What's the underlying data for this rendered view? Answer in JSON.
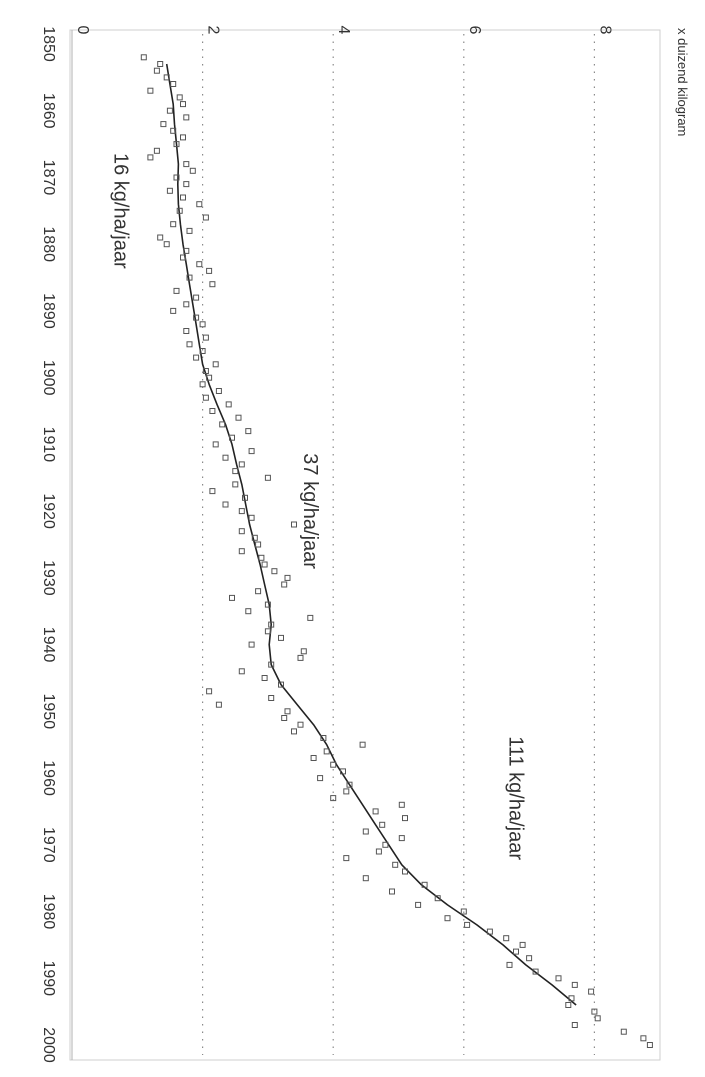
{
  "chart_data": {
    "type": "scatter",
    "orientation": "rotated 90 degrees clockwise",
    "ylabel": "x duizend kilogram",
    "xlabel": "",
    "xlim": [
      1850,
      2000
    ],
    "ylim": [
      0,
      9
    ],
    "grid": "dotted horizontal lines at y = 2, 4, 6, 8",
    "x_ticks": [
      "1850",
      "1860",
      "1870",
      "1880",
      "1890",
      "1900",
      "1910",
      "1920",
      "1930",
      "1940",
      "1950",
      "1960",
      "1970",
      "1980",
      "1990",
      "2000"
    ],
    "y_ticks": [
      "0",
      "2",
      "4",
      "6",
      "8"
    ],
    "annotations": [
      {
        "text": "16 kg/ha/jaar",
        "x": 1875,
        "y": 0.65
      },
      {
        "text": "37 kg/ha/jaar",
        "x": 1920,
        "y": 3.55
      },
      {
        "text": "111 kg/ha/jaar",
        "x": 1963,
        "y": 6.7
      }
    ],
    "series": [
      {
        "type": "scatter",
        "marker": "square",
        "points": [
          [
            1852,
            1.1
          ],
          [
            1853,
            1.35
          ],
          [
            1854,
            1.3
          ],
          [
            1855,
            1.45
          ],
          [
            1856,
            1.55
          ],
          [
            1857,
            1.2
          ],
          [
            1858,
            1.65
          ],
          [
            1859,
            1.7
          ],
          [
            1860,
            1.5
          ],
          [
            1861,
            1.75
          ],
          [
            1862,
            1.4
          ],
          [
            1863,
            1.55
          ],
          [
            1864,
            1.7
          ],
          [
            1865,
            1.6
          ],
          [
            1866,
            1.3
          ],
          [
            1867,
            1.2
          ],
          [
            1868,
            1.75
          ],
          [
            1869,
            1.85
          ],
          [
            1870,
            1.6
          ],
          [
            1871,
            1.75
          ],
          [
            1872,
            1.5
          ],
          [
            1873,
            1.7
          ],
          [
            1874,
            1.95
          ],
          [
            1875,
            1.65
          ],
          [
            1876,
            2.05
          ],
          [
            1877,
            1.55
          ],
          [
            1878,
            1.8
          ],
          [
            1879,
            1.35
          ],
          [
            1880,
            1.45
          ],
          [
            1881,
            1.75
          ],
          [
            1882,
            1.7
          ],
          [
            1883,
            1.95
          ],
          [
            1884,
            2.1
          ],
          [
            1885,
            1.8
          ],
          [
            1886,
            2.15
          ],
          [
            1887,
            1.6
          ],
          [
            1888,
            1.9
          ],
          [
            1889,
            1.75
          ],
          [
            1890,
            1.55
          ],
          [
            1891,
            1.9
          ],
          [
            1892,
            2.0
          ],
          [
            1893,
            1.75
          ],
          [
            1894,
            2.05
          ],
          [
            1895,
            1.8
          ],
          [
            1896,
            2.0
          ],
          [
            1897,
            1.9
          ],
          [
            1898,
            2.2
          ],
          [
            1899,
            2.05
          ],
          [
            1900,
            2.1
          ],
          [
            1901,
            2.0
          ],
          [
            1902,
            2.25
          ],
          [
            1903,
            2.05
          ],
          [
            1904,
            2.4
          ],
          [
            1905,
            2.15
          ],
          [
            1906,
            2.55
          ],
          [
            1907,
            2.3
          ],
          [
            1908,
            2.7
          ],
          [
            1909,
            2.45
          ],
          [
            1910,
            2.2
          ],
          [
            1911,
            2.75
          ],
          [
            1912,
            2.35
          ],
          [
            1913,
            2.6
          ],
          [
            1914,
            2.5
          ],
          [
            1915,
            3.0
          ],
          [
            1916,
            2.5
          ],
          [
            1917,
            2.15
          ],
          [
            1918,
            2.65
          ],
          [
            1919,
            2.35
          ],
          [
            1920,
            2.6
          ],
          [
            1921,
            2.75
          ],
          [
            1922,
            3.4
          ],
          [
            1923,
            2.6
          ],
          [
            1924,
            2.8
          ],
          [
            1925,
            2.85
          ],
          [
            1926,
            2.6
          ],
          [
            1927,
            2.9
          ],
          [
            1928,
            2.95
          ],
          [
            1929,
            3.1
          ],
          [
            1930,
            3.3
          ],
          [
            1931,
            3.25
          ],
          [
            1932,
            2.85
          ],
          [
            1933,
            2.45
          ],
          [
            1934,
            3.0
          ],
          [
            1935,
            2.7
          ],
          [
            1936,
            3.65
          ],
          [
            1937,
            3.05
          ],
          [
            1938,
            3.0
          ],
          [
            1939,
            3.2
          ],
          [
            1940,
            2.75
          ],
          [
            1941,
            3.55
          ],
          [
            1942,
            3.5
          ],
          [
            1943,
            3.05
          ],
          [
            1944,
            2.6
          ],
          [
            1945,
            2.95
          ],
          [
            1946,
            3.2
          ],
          [
            1947,
            2.1
          ],
          [
            1948,
            3.05
          ],
          [
            1949,
            2.25
          ],
          [
            1950,
            3.3
          ],
          [
            1951,
            3.25
          ],
          [
            1952,
            3.5
          ],
          [
            1953,
            3.4
          ],
          [
            1954,
            3.85
          ],
          [
            1955,
            4.45
          ],
          [
            1956,
            3.9
          ],
          [
            1957,
            3.7
          ],
          [
            1958,
            4.0
          ],
          [
            1959,
            4.15
          ],
          [
            1960,
            3.8
          ],
          [
            1961,
            4.25
          ],
          [
            1962,
            4.2
          ],
          [
            1963,
            4.0
          ],
          [
            1964,
            5.05
          ],
          [
            1965,
            4.65
          ],
          [
            1966,
            5.1
          ],
          [
            1967,
            4.75
          ],
          [
            1968,
            4.5
          ],
          [
            1969,
            5.05
          ],
          [
            1970,
            4.8
          ],
          [
            1971,
            4.7
          ],
          [
            1972,
            4.2
          ],
          [
            1973,
            4.95
          ],
          [
            1974,
            5.1
          ],
          [
            1975,
            4.5
          ],
          [
            1976,
            5.4
          ],
          [
            1977,
            4.9
          ],
          [
            1978,
            5.6
          ],
          [
            1979,
            5.3
          ],
          [
            1980,
            6.0
          ],
          [
            1981,
            5.75
          ],
          [
            1982,
            6.05
          ],
          [
            1983,
            6.4
          ],
          [
            1984,
            6.65
          ],
          [
            1985,
            6.9
          ],
          [
            1986,
            6.8
          ],
          [
            1987,
            7.0
          ],
          [
            1988,
            6.7
          ],
          [
            1989,
            7.1
          ],
          [
            1990,
            7.45
          ],
          [
            1991,
            7.7
          ],
          [
            1992,
            7.95
          ],
          [
            1993,
            7.65
          ],
          [
            1994,
            7.6
          ],
          [
            1995,
            8.0
          ],
          [
            1996,
            8.05
          ],
          [
            1997,
            7.7
          ],
          [
            1998,
            8.45
          ],
          [
            1999,
            8.75
          ],
          [
            2000,
            8.85
          ]
        ]
      },
      {
        "type": "line",
        "points": [
          [
            1853,
            1.45
          ],
          [
            1856,
            1.5
          ],
          [
            1859,
            1.55
          ],
          [
            1862,
            1.57
          ],
          [
            1865,
            1.6
          ],
          [
            1868,
            1.63
          ],
          [
            1871,
            1.62
          ],
          [
            1874,
            1.63
          ],
          [
            1877,
            1.66
          ],
          [
            1880,
            1.7
          ],
          [
            1883,
            1.75
          ],
          [
            1886,
            1.8
          ],
          [
            1889,
            1.85
          ],
          [
            1892,
            1.9
          ],
          [
            1895,
            1.95
          ],
          [
            1898,
            2.0
          ],
          [
            1901,
            2.1
          ],
          [
            1904,
            2.22
          ],
          [
            1907,
            2.35
          ],
          [
            1910,
            2.45
          ],
          [
            1913,
            2.52
          ],
          [
            1916,
            2.6
          ],
          [
            1919,
            2.66
          ],
          [
            1922,
            2.72
          ],
          [
            1925,
            2.8
          ],
          [
            1928,
            2.88
          ],
          [
            1931,
            2.95
          ],
          [
            1934,
            3.02
          ],
          [
            1937,
            3.05
          ],
          [
            1940,
            3.02
          ],
          [
            1943,
            3.05
          ],
          [
            1946,
            3.2
          ],
          [
            1949,
            3.45
          ],
          [
            1952,
            3.7
          ],
          [
            1955,
            3.9
          ],
          [
            1958,
            4.05
          ],
          [
            1961,
            4.25
          ],
          [
            1964,
            4.45
          ],
          [
            1967,
            4.65
          ],
          [
            1970,
            4.85
          ],
          [
            1973,
            5.05
          ],
          [
            1976,
            5.35
          ],
          [
            1979,
            5.75
          ],
          [
            1982,
            6.2
          ],
          [
            1985,
            6.6
          ],
          [
            1988,
            6.95
          ],
          [
            1991,
            7.35
          ],
          [
            1994,
            7.72
          ]
        ]
      }
    ]
  }
}
